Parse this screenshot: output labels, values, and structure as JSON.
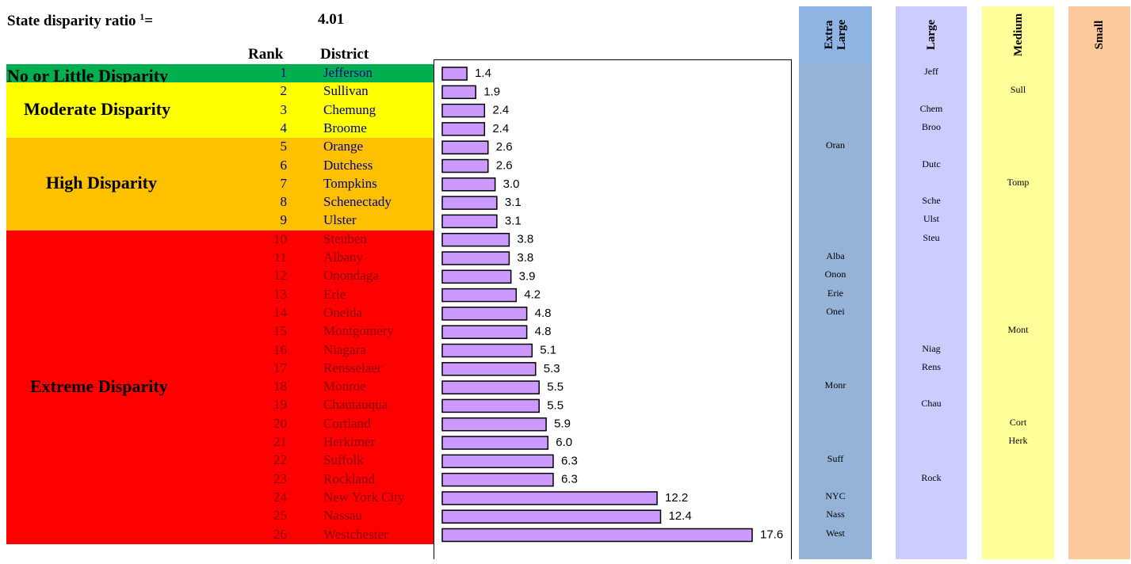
{
  "header": {
    "ratio_label": "State disparity ratio",
    "ratio_sup": "1",
    "ratio_eq": "=",
    "ratio_value": "4.01",
    "rank_header": "Rank",
    "district_header": "District"
  },
  "bands": [
    {
      "label": "No or Little Disparity",
      "color": "#00b050",
      "text_color": "#000000",
      "from": 0,
      "to": 1
    },
    {
      "label": "Moderate Disparity",
      "color": "#ffff00",
      "text_color": "#000000",
      "from": 1,
      "to": 4
    },
    {
      "label": "High Disparity",
      "color": "#ffc000",
      "text_color": "#000000",
      "from": 4,
      "to": 9
    },
    {
      "label": "Extreme Disparity",
      "color": "#ff0000",
      "text_color": "#000000",
      "from": 9,
      "to": 26
    }
  ],
  "rows": [
    {
      "rank": "1",
      "district": "Jefferson"
    },
    {
      "rank": "2",
      "district": "Sullivan"
    },
    {
      "rank": "3",
      "district": "Chemung"
    },
    {
      "rank": "4",
      "district": "Broome"
    },
    {
      "rank": "5",
      "district": "Orange"
    },
    {
      "rank": "6",
      "district": "Dutchess"
    },
    {
      "rank": "7",
      "district": "Tompkins"
    },
    {
      "rank": "8",
      "district": "Schenectady"
    },
    {
      "rank": "9",
      "district": "Ulster"
    },
    {
      "rank": "10",
      "district": "Steuben"
    },
    {
      "rank": "11",
      "district": "Albany"
    },
    {
      "rank": "12",
      "district": "Onondaga"
    },
    {
      "rank": "13",
      "district": "Erie"
    },
    {
      "rank": "14",
      "district": "Oneida"
    },
    {
      "rank": "15",
      "district": "Montgomery"
    },
    {
      "rank": "16",
      "district": "Niagara"
    },
    {
      "rank": "17",
      "district": "Rensselaer"
    },
    {
      "rank": "18",
      "district": "Monroe"
    },
    {
      "rank": "19",
      "district": "Chautauqua"
    },
    {
      "rank": "20",
      "district": "Cortland"
    },
    {
      "rank": "21",
      "district": "Herkimer"
    },
    {
      "rank": "22",
      "district": "Suffolk"
    },
    {
      "rank": "23",
      "district": "Rockland"
    },
    {
      "rank": "24",
      "district": "New York City"
    },
    {
      "rank": "25",
      "district": "Nassau"
    },
    {
      "rank": "26",
      "district": "Westchester"
    }
  ],
  "chart_data": {
    "type": "bar",
    "orientation": "horizontal",
    "categories": [
      "Jefferson",
      "Sullivan",
      "Chemung",
      "Broome",
      "Orange",
      "Dutchess",
      "Tompkins",
      "Schenectady",
      "Ulster",
      "Steuben",
      "Albany",
      "Onondaga",
      "Erie",
      "Oneida",
      "Montgomery",
      "Niagara",
      "Rensselaer",
      "Monroe",
      "Chautauqua",
      "Cortland",
      "Herkimer",
      "Suffolk",
      "Rockland",
      "New York City",
      "Nassau",
      "Westchester"
    ],
    "values": [
      1.4,
      1.9,
      2.4,
      2.4,
      2.6,
      2.6,
      3.0,
      3.1,
      3.1,
      3.8,
      3.8,
      3.9,
      4.2,
      4.8,
      4.8,
      5.1,
      5.3,
      5.5,
      5.5,
      5.9,
      6.0,
      6.3,
      6.3,
      12.2,
      12.4,
      17.6
    ],
    "value_labels": [
      "1.4",
      "1.9",
      "2.4",
      "2.4",
      "2.6",
      "2.6",
      "3.0",
      "3.1",
      "3.1",
      "3.8",
      "3.8",
      "3.9",
      "4.2",
      "4.8",
      "4.8",
      "5.1",
      "5.3",
      "5.5",
      "5.5",
      "5.9",
      "6.0",
      "6.3",
      "6.3",
      "12.2",
      "12.4",
      "17.6"
    ],
    "xlim": [
      0,
      20
    ],
    "bar_color": "#cc99ff"
  },
  "size_columns": [
    {
      "label": "Extra Large",
      "lines": [
        "Extra",
        "Large"
      ],
      "color": "#95b3d7",
      "header_color": "#8db4e2",
      "entries": [
        {
          "row": 4,
          "abbr": "Oran"
        },
        {
          "row": 10,
          "abbr": "Alba"
        },
        {
          "row": 11,
          "abbr": "Onon"
        },
        {
          "row": 12,
          "abbr": "Erie"
        },
        {
          "row": 13,
          "abbr": "Onei"
        },
        {
          "row": 17,
          "abbr": "Monr"
        },
        {
          "row": 21,
          "abbr": "Suff"
        },
        {
          "row": 23,
          "abbr": "NYC"
        },
        {
          "row": 24,
          "abbr": "Nass"
        },
        {
          "row": 25,
          "abbr": "West"
        }
      ]
    },
    {
      "label": "Large",
      "lines": [
        "Large"
      ],
      "color": "#ccccff",
      "header_color": "#ccccff",
      "entries": [
        {
          "row": 0,
          "abbr": "Jeff"
        },
        {
          "row": 2,
          "abbr": "Chem"
        },
        {
          "row": 3,
          "abbr": "Broo"
        },
        {
          "row": 5,
          "abbr": "Dutc"
        },
        {
          "row": 7,
          "abbr": "Sche"
        },
        {
          "row": 8,
          "abbr": "Ulst"
        },
        {
          "row": 9,
          "abbr": "Steu"
        },
        {
          "row": 15,
          "abbr": "Niag"
        },
        {
          "row": 16,
          "abbr": "Rens"
        },
        {
          "row": 18,
          "abbr": "Chau"
        },
        {
          "row": 22,
          "abbr": "Rock"
        }
      ]
    },
    {
      "label": "Medium",
      "lines": [
        "Medium"
      ],
      "color": "#ffff99",
      "header_color": "#ffff99",
      "entries": [
        {
          "row": 1,
          "abbr": "Sull"
        },
        {
          "row": 6,
          "abbr": "Tomp"
        },
        {
          "row": 14,
          "abbr": "Mont"
        },
        {
          "row": 19,
          "abbr": "Cort"
        },
        {
          "row": 20,
          "abbr": "Herk"
        }
      ]
    },
    {
      "label": "Small",
      "lines": [
        "Small"
      ],
      "color": "#fcc99a",
      "header_color": "#fcc99a",
      "entries": []
    }
  ]
}
